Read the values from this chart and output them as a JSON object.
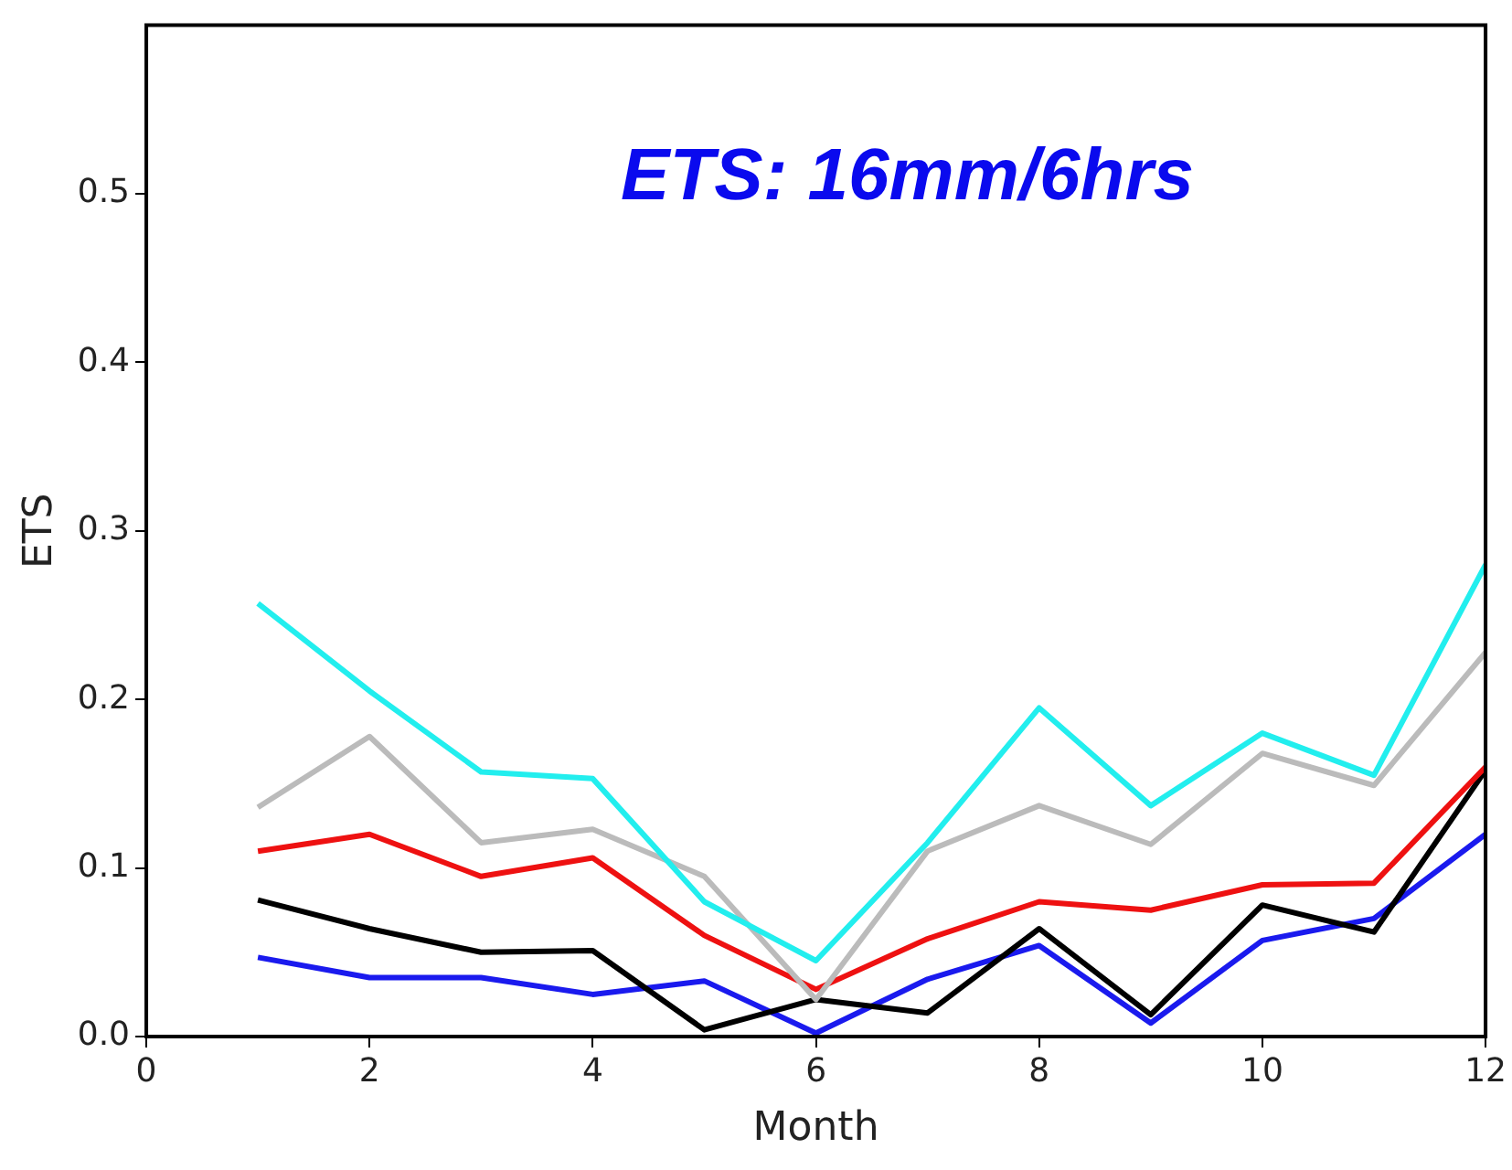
{
  "chart_data": {
    "type": "line",
    "title": "ETS: 16mm/6hrs",
    "xlabel": "Month",
    "ylabel": "ETS",
    "x": [
      1,
      2,
      3,
      4,
      5,
      6,
      7,
      8,
      9,
      10,
      11,
      12
    ],
    "series": [
      {
        "color": "#22eeee",
        "values": [
          0.257,
          0.205,
          0.157,
          0.153,
          0.08,
          0.045,
          0.115,
          0.195,
          0.137,
          0.18,
          0.155,
          0.28
        ]
      },
      {
        "color": "#bbbbbb",
        "values": [
          0.136,
          0.178,
          0.115,
          0.123,
          0.095,
          0.022,
          0.11,
          0.137,
          0.114,
          0.168,
          0.149,
          0.228
        ]
      },
      {
        "color": "#ee1111",
        "values": [
          0.11,
          0.12,
          0.095,
          0.106,
          0.06,
          0.028,
          0.058,
          0.08,
          0.075,
          0.09,
          0.091,
          0.16
        ]
      },
      {
        "color": "#000000",
        "values": [
          0.081,
          0.064,
          0.05,
          0.051,
          0.004,
          0.022,
          0.014,
          0.064,
          0.013,
          0.078,
          0.062,
          0.158
        ]
      },
      {
        "color": "#1a1aee",
        "values": [
          0.047,
          0.035,
          0.035,
          0.025,
          0.033,
          0.002,
          0.034,
          0.054,
          0.008,
          0.057,
          0.07,
          0.12
        ]
      }
    ],
    "xlim": [
      0,
      12
    ],
    "xticks": [
      0,
      2,
      4,
      6,
      8,
      10,
      12
    ],
    "ylim": [
      0,
      0.6
    ],
    "yticks": [
      {
        "value": 0,
        "label": "0.0"
      },
      {
        "value": 0.1,
        "label": "0.1"
      },
      {
        "value": 0.2,
        "label": "0.2"
      },
      {
        "value": 0.3,
        "label": "0.3"
      },
      {
        "value": 0.4,
        "label": "0.4"
      },
      {
        "value": 0.5,
        "label": "0.5"
      }
    ],
    "grid": false,
    "legend": false,
    "marker": "none",
    "line_style": "solid"
  }
}
